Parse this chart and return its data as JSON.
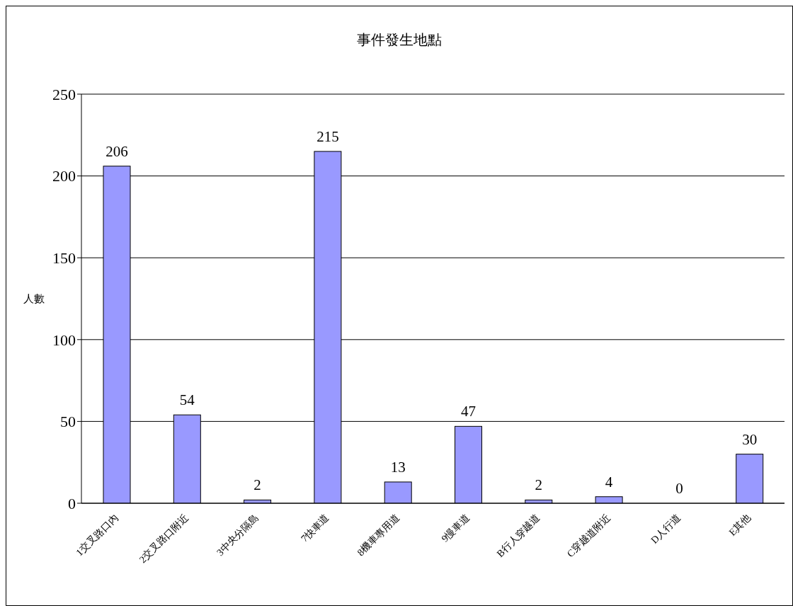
{
  "chart_data": {
    "type": "bar",
    "title": "事件發生地點",
    "ylabel": "人數",
    "categories": [
      "1交叉路口內",
      "2交叉路口附近",
      "3中央分隔島",
      "7快車道",
      "8機車專用道",
      "9慢車道",
      "B行人穿越道",
      "C穿越道附近",
      "D人行道",
      "E其他"
    ],
    "values": [
      206,
      54,
      2,
      215,
      13,
      47,
      2,
      4,
      0,
      30
    ],
    "color": "#9999ff",
    "ylim": [
      0,
      250
    ],
    "yticks": [
      0,
      50,
      100,
      150,
      200,
      250
    ],
    "grid": "y",
    "data_labels": true
  }
}
